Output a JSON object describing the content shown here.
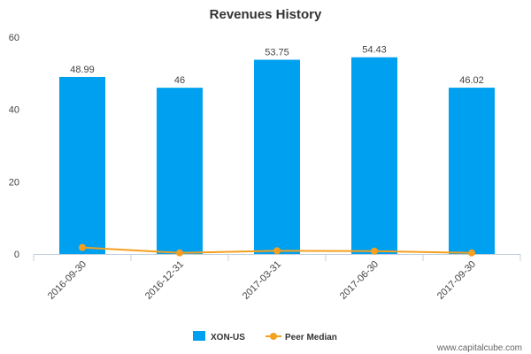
{
  "chart_data": {
    "type": "bar",
    "title": "Revenues History",
    "xlabel": "",
    "ylabel": "",
    "categories": [
      "2016-09-30",
      "2016-12-31",
      "2017-03-31",
      "2017-06-30",
      "2017-09-30"
    ],
    "ylim": [
      0,
      60
    ],
    "yticks": [
      0,
      20,
      40,
      60
    ],
    "series": [
      {
        "name": "XON-US",
        "type": "bar",
        "color": "#00a0f0",
        "values": [
          48.99,
          46,
          53.75,
          54.43,
          46.02
        ],
        "data_labels": [
          "48.99",
          "46",
          "53.75",
          "54.43",
          "46.02"
        ]
      },
      {
        "name": "Peer Median",
        "type": "line",
        "color": "#f5a01e",
        "values": [
          1.8,
          0.3,
          0.9,
          0.8,
          0.3
        ]
      }
    ],
    "legend_position": "bottom-center",
    "grid": false
  },
  "watermark": "www.capitalcube.com"
}
